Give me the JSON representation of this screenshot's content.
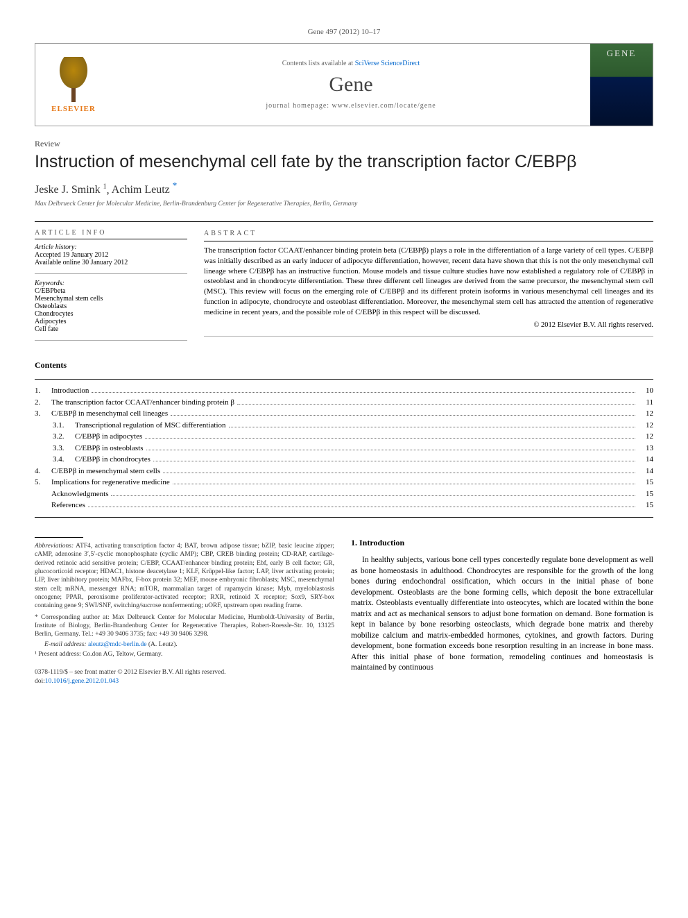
{
  "journal_ref": "Gene 497 (2012) 10–17",
  "header": {
    "publisher_name": "ELSEVIER",
    "contents_prefix": "Contents lists available at ",
    "contents_link": "SciVerse ScienceDirect",
    "journal_name": "Gene",
    "homepage_label": "journal homepage: www.elsevier.com/locate/gene",
    "cover_title": "GENE"
  },
  "article": {
    "type": "Review",
    "title": "Instruction of mesenchymal cell fate by the transcription factor C/EBPβ",
    "authors": [
      {
        "name": "Jeske J. Smink",
        "sup": "1"
      },
      {
        "name": "Achim Leutz",
        "sup": "*"
      }
    ],
    "affiliation": "Max Delbrueck Center for Molecular Medicine, Berlin-Brandenburg Center for Regenerative Therapies, Berlin, Germany"
  },
  "info": {
    "head": "article info",
    "history_label": "Article history:",
    "accepted": "Accepted 19 January 2012",
    "online": "Available online 30 January 2012",
    "keywords_label": "Keywords:",
    "keywords": [
      "C/EBPbeta",
      "Mesenchymal stem cells",
      "Osteoblasts",
      "Chondrocytes",
      "Adipocytes",
      "Cell fate"
    ]
  },
  "abstract": {
    "head": "abstract",
    "text": "The transcription factor CCAAT/enhancer binding protein beta (C/EBPβ) plays a role in the differentiation of a large variety of cell types. C/EBPβ was initially described as an early inducer of adipocyte differentiation, however, recent data have shown that this is not the only mesenchymal cell lineage where C/EBPβ has an instructive function. Mouse models and tissue culture studies have now established a regulatory role of C/EBPβ in osteoblast and in chondrocyte differentiation. These three different cell lineages are derived from the same precursor, the mesenchymal stem cell (MSC). This review will focus on the emerging role of C/EBPβ and its different protein isoforms in various mesenchymal cell lineages and its function in adipocyte, chondrocyte and osteoblast differentiation. Moreover, the mesenchymal stem cell has attracted the attention of regenerative medicine in recent years, and the possible role of C/EBPβ in this respect will be discussed.",
    "copyright": "© 2012 Elsevier B.V. All rights reserved."
  },
  "contents": {
    "title": "Contents",
    "items": [
      {
        "num": "1.",
        "label": "Introduction",
        "page": "10"
      },
      {
        "num": "2.",
        "label": "The transcription factor CCAAT/enhancer binding protein β",
        "page": "11"
      },
      {
        "num": "3.",
        "label": "C/EBPβ in mesenchymal cell lineages",
        "page": "12"
      },
      {
        "num": "3.1.",
        "label": "Transcriptional regulation of MSC differentiation",
        "page": "12",
        "indent": true
      },
      {
        "num": "3.2.",
        "label": "C/EBPβ in adipocytes",
        "page": "12",
        "indent": true
      },
      {
        "num": "3.3.",
        "label": "C/EBPβ in osteoblasts",
        "page": "13",
        "indent": true
      },
      {
        "num": "3.4.",
        "label": "C/EBPβ in chondrocytes",
        "page": "14",
        "indent": true
      },
      {
        "num": "4.",
        "label": "C/EBPβ in mesenchymal stem cells",
        "page": "14"
      },
      {
        "num": "5.",
        "label": "Implications for regenerative medicine",
        "page": "15"
      },
      {
        "num": "",
        "label": "Acknowledgments",
        "page": "15"
      },
      {
        "num": "",
        "label": "References",
        "page": "15"
      }
    ]
  },
  "footnotes": {
    "abbrev_label": "Abbreviations:",
    "abbrev_text": " ATF4, activating transcription factor 4; BAT, brown adipose tissue; bZIP, basic leucine zipper; cAMP, adenosine 3′,5′-cyclic monophosphate (cyclic AMP); CBP, CREB binding protein; CD-RAP, cartilage-derived retinoic acid sensitive protein; C/EBP, CCAAT/enhancer binding protein; Ebf, early B cell factor; GR, glucocorticoid receptor; HDAC1, histone deacetylase 1; KLF, Krüppel-like factor; LAP, liver activating protein; LIP, liver inhibitory protein; MAFbx, F-box protein 32; MEF, mouse embryonic fibroblasts; MSC, mesenchymal stem cell; mRNA, messenger RNA; mTOR, mammalian target of rapamycin kinase; Myb, myeloblastosis oncogene; PPAR, peroxisome proliferator-activated receptor; RXR, retinoid X receptor; Sox9, SRY-box containing gene 9; SWI/SNF, switching/sucrose nonfermenting; uORF, upstream open reading frame.",
    "corr_label": "* Corresponding author at:",
    "corr_text": " Max Delbrueck Center for Molecular Medicine, Humboldt-University of Berlin, Institute of Biology, Berlin-Brandenburg Center for Regenerative Therapies, Robert-Roessle-Str. 10, 13125 Berlin, Germany. Tel.: +49 30 9406 3735; fax: +49 30 9406 3298.",
    "email_label": "E-mail address: ",
    "email": "aleutz@mdc-berlin.de",
    "email_suffix": " (A. Leutz).",
    "present_label": "¹ Present address:",
    "present_text": " Co.don AG, Teltow, Germany."
  },
  "footer": {
    "line1": "0378-1119/$ – see front matter © 2012 Elsevier B.V. All rights reserved.",
    "doi_prefix": "doi:",
    "doi": "10.1016/j.gene.2012.01.043"
  },
  "intro": {
    "head": "1. Introduction",
    "text": "In healthy subjects, various bone cell types concertedly regulate bone development as well as bone homeostasis in adulthood. Chondrocytes are responsible for the growth of the long bones during endochondral ossification, which occurs in the initial phase of bone development. Osteoblasts are the bone forming cells, which deposit the bone extracellular matrix. Osteoblasts eventually differentiate into osteocytes, which are located within the bone matrix and act as mechanical sensors to adjust bone formation on demand. Bone formation is kept in balance by bone resorbing osteoclasts, which degrade bone matrix and thereby mobilize calcium and matrix-embedded hormones, cytokines, and growth factors. During development, bone formation exceeds bone resorption resulting in an increase in bone mass. After this initial phase of bone formation, remodeling continues and homeostasis is maintained by continuous"
  }
}
